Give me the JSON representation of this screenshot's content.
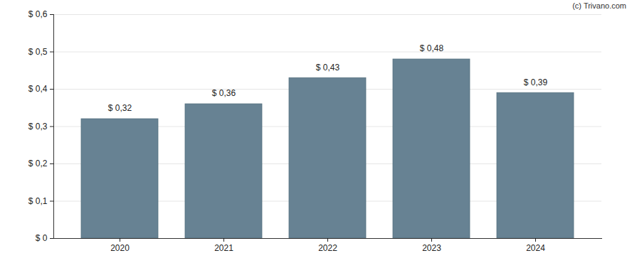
{
  "chart_data": {
    "type": "bar",
    "annotations": [
      "(c) Trivano.com"
    ],
    "categories": [
      "2020",
      "2021",
      "2022",
      "2023",
      "2024"
    ],
    "values": [
      0.32,
      0.36,
      0.43,
      0.48,
      0.39
    ],
    "value_labels": [
      "$ 0,32",
      "$ 0,36",
      "$ 0,43",
      "$ 0,48",
      "$ 0,39"
    ],
    "data_labels": true,
    "color": "#678293",
    "ylim": [
      0,
      0.6
    ],
    "yticks": [
      {
        "value": 0,
        "label": "$ 0"
      },
      {
        "value": 0.1,
        "label": "$ 0,1"
      },
      {
        "value": 0.2,
        "label": "$ 0,2"
      },
      {
        "value": 0.3,
        "label": "$ 0,3"
      },
      {
        "value": 0.4,
        "label": "$ 0,4"
      },
      {
        "value": 0.5,
        "label": "$ 0,5"
      },
      {
        "value": 0.6,
        "label": "$ 0,6"
      }
    ],
    "grid": true
  }
}
